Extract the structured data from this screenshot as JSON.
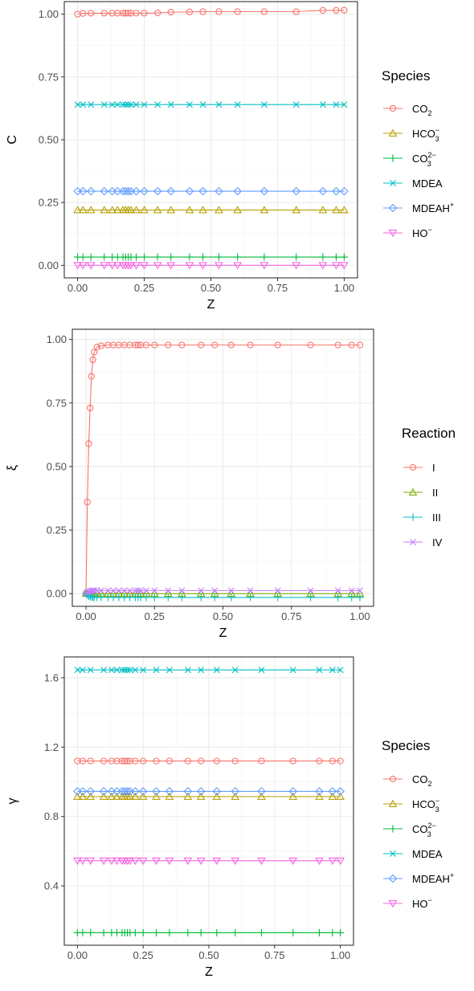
{
  "chart_data": [
    {
      "type": "line",
      "xlabel": "Z",
      "ylabel": "C",
      "xlim": [
        -0.05,
        1.05
      ],
      "ylim": [
        -0.05,
        1.05
      ],
      "x_ticks": [
        0,
        0.25,
        0.5,
        0.75,
        1
      ],
      "x_tick_labels": [
        "0.00",
        "0.25",
        "0.50",
        "0.75",
        "1.00"
      ],
      "y_ticks": [
        0,
        0.25,
        0.5,
        0.75,
        1
      ],
      "y_tick_labels": [
        "0.00",
        "0.25",
        "0.50",
        "0.75",
        "1.00"
      ],
      "grid": true,
      "legend_title": "Species",
      "legend_placement": "right",
      "x": [
        0,
        0.02,
        0.05,
        0.1,
        0.13,
        0.15,
        0.17,
        0.18,
        0.19,
        0.2,
        0.22,
        0.25,
        0.3,
        0.35,
        0.42,
        0.47,
        0.53,
        0.6,
        0.7,
        0.82,
        0.92,
        0.97,
        1.0
      ],
      "series": [
        {
          "name": "CO2",
          "label_main": "CO",
          "label_sub": "2",
          "label_sup": "",
          "color": "#F8766D",
          "marker": "circle",
          "values": [
            1.0,
            1.003,
            1.004,
            1.004,
            1.004,
            1.004,
            1.004,
            1.004,
            1.004,
            1.004,
            1.004,
            1.004,
            1.005,
            1.008,
            1.009,
            1.01,
            1.01,
            1.01,
            1.01,
            1.01,
            1.015,
            1.015,
            1.016
          ]
        },
        {
          "name": "HCO3-",
          "label_main": "HCO",
          "label_sub": "3",
          "label_sup": "−",
          "color": "#B79F00",
          "marker": "triangle-up",
          "values": [
            0.22,
            0.22,
            0.22,
            0.22,
            0.22,
            0.22,
            0.22,
            0.22,
            0.22,
            0.22,
            0.22,
            0.22,
            0.22,
            0.22,
            0.22,
            0.22,
            0.22,
            0.22,
            0.22,
            0.22,
            0.22,
            0.22,
            0.22
          ]
        },
        {
          "name": "CO32-",
          "label_main": "CO",
          "label_sub": "3",
          "label_sup": "2−",
          "color": "#00BA38",
          "marker": "plus",
          "values": [
            0.033,
            0.033,
            0.033,
            0.033,
            0.033,
            0.033,
            0.033,
            0.033,
            0.033,
            0.033,
            0.033,
            0.033,
            0.033,
            0.033,
            0.033,
            0.033,
            0.033,
            0.033,
            0.033,
            0.033,
            0.033,
            0.033,
            0.033
          ]
        },
        {
          "name": "MDEA",
          "label_main": "MDEA",
          "label_sub": "",
          "label_sup": "",
          "color": "#00BFC4",
          "marker": "x",
          "values": [
            0.64,
            0.64,
            0.64,
            0.64,
            0.64,
            0.64,
            0.64,
            0.64,
            0.64,
            0.64,
            0.64,
            0.64,
            0.64,
            0.64,
            0.64,
            0.64,
            0.64,
            0.64,
            0.64,
            0.64,
            0.64,
            0.64,
            0.64
          ]
        },
        {
          "name": "MDEAH+",
          "label_main": "MDEAH",
          "label_sub": "",
          "label_sup": "+",
          "color": "#619CFF",
          "marker": "diamond",
          "values": [
            0.295,
            0.295,
            0.295,
            0.295,
            0.295,
            0.295,
            0.295,
            0.295,
            0.295,
            0.295,
            0.295,
            0.295,
            0.295,
            0.295,
            0.295,
            0.295,
            0.295,
            0.295,
            0.295,
            0.295,
            0.295,
            0.295,
            0.295
          ]
        },
        {
          "name": "HO-",
          "label_main": "HO",
          "label_sub": "",
          "label_sup": "−",
          "color": "#F564E3",
          "marker": "triangle-down",
          "values": [
            0.0,
            0.0,
            0.0,
            0.0,
            0.0,
            0.0,
            0.0,
            0.0,
            0.0,
            0.0,
            0.0,
            0.0,
            0.0,
            0.0,
            0.0,
            0.0,
            0.0,
            0.0,
            0.0,
            0.0,
            0.0,
            0.0,
            0.0
          ]
        }
      ]
    },
    {
      "type": "line",
      "xlabel": "Z",
      "ylabel": "ξ",
      "xlim": [
        -0.05,
        1.05
      ],
      "ylim": [
        -0.05,
        1.04
      ],
      "x_ticks": [
        0,
        0.25,
        0.5,
        0.75,
        1
      ],
      "x_tick_labels": [
        "0.00",
        "0.25",
        "0.50",
        "0.75",
        "1.00"
      ],
      "y_ticks": [
        0,
        0.25,
        0.5,
        0.75,
        1
      ],
      "y_tick_labels": [
        "0.00",
        "0.25",
        "0.50",
        "0.75",
        "1.00"
      ],
      "grid": true,
      "legend_title": "Reaction",
      "legend_placement": "right",
      "x": [
        0,
        0.005,
        0.01,
        0.015,
        0.02,
        0.025,
        0.03,
        0.04,
        0.055,
        0.08,
        0.1,
        0.12,
        0.14,
        0.16,
        0.18,
        0.19,
        0.2,
        0.22,
        0.25,
        0.3,
        0.35,
        0.42,
        0.47,
        0.53,
        0.6,
        0.7,
        0.82,
        0.92,
        0.97,
        1.0
      ],
      "series": [
        {
          "name": "I",
          "label_main": "I",
          "label_sub": "",
          "label_sup": "",
          "color": "#F8766D",
          "marker": "circle",
          "values": [
            0.0,
            0.36,
            0.59,
            0.73,
            0.855,
            0.92,
            0.95,
            0.97,
            0.975,
            0.978,
            0.978,
            0.978,
            0.978,
            0.978,
            0.978,
            0.978,
            0.978,
            0.978,
            0.978,
            0.978,
            0.978,
            0.978,
            0.978,
            0.978,
            0.978,
            0.978,
            0.978,
            0.978,
            0.978,
            0.978
          ]
        },
        {
          "name": "II",
          "label_main": "II",
          "label_sub": "",
          "label_sup": "",
          "color": "#7CAE00",
          "marker": "triangle-up",
          "values": [
            0.0,
            0.0,
            0.0,
            0.0,
            0.0,
            0.0,
            0.0,
            0.0,
            0.0,
            0.0,
            0.0,
            0.0,
            0.0,
            0.0,
            0.0,
            0.0,
            0.0,
            0.0,
            0.0,
            0.0,
            0.0,
            0.0,
            0.0,
            0.0,
            0.0,
            0.0,
            0.0,
            0.0,
            0.0,
            0.0
          ]
        },
        {
          "name": "III",
          "label_main": "III",
          "label_sub": "",
          "label_sup": "",
          "color": "#00BFC4",
          "marker": "plus",
          "values": [
            0.0,
            -0.006,
            -0.01,
            -0.012,
            -0.013,
            -0.014,
            -0.015,
            -0.015,
            -0.015,
            -0.015,
            -0.015,
            -0.015,
            -0.015,
            -0.015,
            -0.015,
            -0.015,
            -0.015,
            -0.015,
            -0.015,
            -0.015,
            -0.015,
            -0.015,
            -0.015,
            -0.015,
            -0.015,
            -0.015,
            -0.015,
            -0.015,
            -0.015,
            -0.015
          ]
        },
        {
          "name": "IV",
          "label_main": "IV",
          "label_sub": "",
          "label_sup": "",
          "color": "#C77CFF",
          "marker": "x",
          "values": [
            0.0,
            0.005,
            0.008,
            0.01,
            0.011,
            0.012,
            0.012,
            0.012,
            0.012,
            0.012,
            0.012,
            0.012,
            0.012,
            0.012,
            0.012,
            0.012,
            0.012,
            0.012,
            0.012,
            0.012,
            0.012,
            0.012,
            0.012,
            0.012,
            0.012,
            0.012,
            0.012,
            0.012,
            0.012,
            0.012
          ]
        }
      ]
    },
    {
      "type": "line",
      "xlabel": "Z",
      "ylabel": "γ",
      "xlim": [
        -0.05,
        1.05
      ],
      "ylim": [
        0.058,
        1.72
      ],
      "x_ticks": [
        0,
        0.25,
        0.5,
        0.75,
        1
      ],
      "x_tick_labels": [
        "0.00",
        "0.25",
        "0.50",
        "0.75",
        "1.00"
      ],
      "y_ticks": [
        0.4,
        0.8,
        1.2,
        1.6
      ],
      "y_tick_labels": [
        "0.4",
        "0.8",
        "1.2",
        "1.6"
      ],
      "grid": true,
      "legend_title": "Species",
      "legend_placement": "right",
      "x": [
        0,
        0.02,
        0.05,
        0.1,
        0.13,
        0.15,
        0.17,
        0.18,
        0.19,
        0.2,
        0.22,
        0.25,
        0.3,
        0.35,
        0.42,
        0.47,
        0.53,
        0.6,
        0.7,
        0.82,
        0.92,
        0.97,
        1.0
      ],
      "series": [
        {
          "name": "CO2",
          "label_main": "CO",
          "label_sub": "2",
          "label_sup": "",
          "color": "#F8766D",
          "marker": "circle",
          "values": [
            1.12,
            1.12,
            1.12,
            1.12,
            1.12,
            1.12,
            1.12,
            1.12,
            1.12,
            1.12,
            1.12,
            1.12,
            1.12,
            1.12,
            1.12,
            1.12,
            1.12,
            1.12,
            1.12,
            1.12,
            1.12,
            1.12,
            1.12
          ]
        },
        {
          "name": "HCO3-",
          "label_main": "HCO",
          "label_sub": "3",
          "label_sup": "−",
          "color": "#B79F00",
          "marker": "triangle-up",
          "values": [
            0.915,
            0.915,
            0.915,
            0.915,
            0.915,
            0.915,
            0.915,
            0.915,
            0.915,
            0.915,
            0.915,
            0.915,
            0.915,
            0.915,
            0.915,
            0.915,
            0.915,
            0.915,
            0.915,
            0.915,
            0.915,
            0.915,
            0.915
          ]
        },
        {
          "name": "CO32-",
          "label_main": "CO",
          "label_sub": "3",
          "label_sup": "2−",
          "color": "#00BA38",
          "marker": "plus",
          "values": [
            0.13,
            0.13,
            0.13,
            0.13,
            0.13,
            0.13,
            0.13,
            0.13,
            0.13,
            0.13,
            0.13,
            0.13,
            0.13,
            0.13,
            0.13,
            0.13,
            0.13,
            0.13,
            0.13,
            0.13,
            0.13,
            0.13,
            0.13
          ]
        },
        {
          "name": "MDEA",
          "label_main": "MDEA",
          "label_sub": "",
          "label_sup": "",
          "color": "#00BFC4",
          "marker": "x",
          "values": [
            1.645,
            1.645,
            1.645,
            1.645,
            1.645,
            1.645,
            1.645,
            1.645,
            1.645,
            1.645,
            1.645,
            1.645,
            1.645,
            1.645,
            1.645,
            1.645,
            1.645,
            1.645,
            1.645,
            1.645,
            1.645,
            1.645,
            1.645
          ]
        },
        {
          "name": "MDEAH+",
          "label_main": "MDEAH",
          "label_sub": "",
          "label_sup": "+",
          "color": "#619CFF",
          "marker": "diamond",
          "values": [
            0.945,
            0.945,
            0.945,
            0.945,
            0.945,
            0.945,
            0.945,
            0.945,
            0.945,
            0.945,
            0.945,
            0.945,
            0.945,
            0.945,
            0.945,
            0.945,
            0.945,
            0.945,
            0.945,
            0.945,
            0.945,
            0.945,
            0.945
          ]
        },
        {
          "name": "HO-",
          "label_main": "HO",
          "label_sub": "",
          "label_sup": "−",
          "color": "#F564E3",
          "marker": "triangle-down",
          "values": [
            0.545,
            0.545,
            0.545,
            0.545,
            0.545,
            0.545,
            0.545,
            0.545,
            0.545,
            0.545,
            0.545,
            0.545,
            0.545,
            0.545,
            0.545,
            0.545,
            0.545,
            0.545,
            0.545,
            0.545,
            0.545,
            0.545,
            0.545
          ]
        }
      ]
    }
  ]
}
